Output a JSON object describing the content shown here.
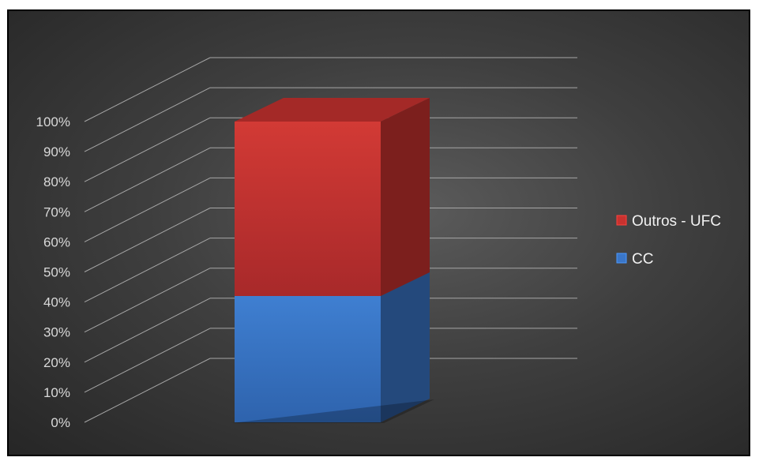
{
  "chart_data": {
    "type": "bar",
    "stacked": true,
    "percent_stacked": true,
    "three_d": true,
    "categories": [
      ""
    ],
    "series": [
      {
        "name": "CC",
        "values": [
          42
        ],
        "color": "#3a76c8"
      },
      {
        "name": "Outros - UFC",
        "values": [
          58
        ],
        "color": "#c8322f"
      }
    ],
    "title": "",
    "xlabel": "",
    "ylabel": "",
    "ylim": [
      0,
      100
    ],
    "yticks": [
      "0%",
      "10%",
      "20%",
      "30%",
      "40%",
      "50%",
      "60%",
      "70%",
      "80%",
      "90%",
      "100%"
    ],
    "grid": true,
    "legend_position": "right",
    "background": "#3f3f3f"
  }
}
